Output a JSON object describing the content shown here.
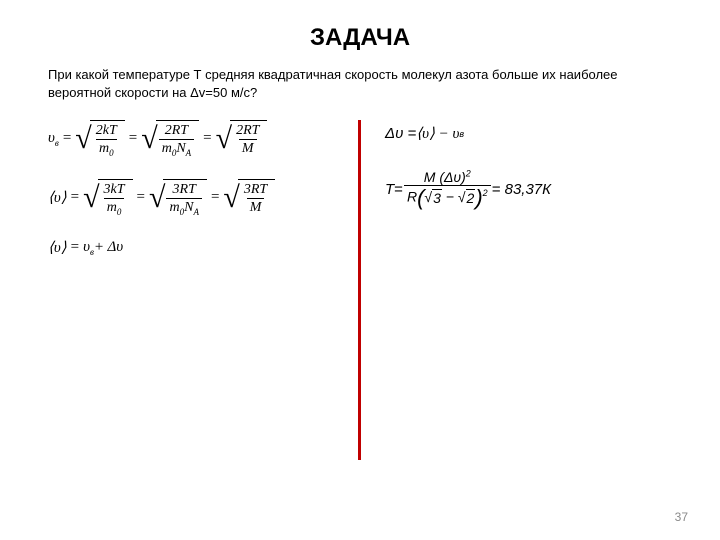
{
  "title": "ЗАДАЧА",
  "problem_text": "При какой температуре Т средняя квадратичная скорость молекул азота больше их наиболее вероятной скорости на Δv=50 м/с?",
  "colors": {
    "divider": "#c00000",
    "text": "#000000",
    "background": "#ffffff",
    "page_num": "#8a8a8a"
  },
  "equations": {
    "eq1_lhs_var": "υ",
    "eq1_lhs_sub": "в",
    "eq1_sqrt1_num": "2kT",
    "eq1_sqrt1_den_var": "m",
    "eq1_sqrt1_den_sub": "0",
    "eq1_sqrt2_num": "2RT",
    "eq1_sqrt2_den_m": "m",
    "eq1_sqrt2_den_sub": "0",
    "eq1_sqrt2_den_N": "N",
    "eq1_sqrt2_den_Nsub": "A",
    "eq1_sqrt3_num": "2RT",
    "eq1_sqrt3_den": "M",
    "eq2_lhs": "⟨υ⟩",
    "eq2_sqrt1_num": "3kT",
    "eq2_sqrt1_den_var": "m",
    "eq2_sqrt1_den_sub": "0",
    "eq2_sqrt2_num": "3RT",
    "eq2_sqrt2_den_m": "m",
    "eq2_sqrt2_den_sub": "0",
    "eq2_sqrt2_den_N": "N",
    "eq2_sqrt2_den_Nsub": "A",
    "eq2_sqrt3_num": "3RT",
    "eq2_sqrt3_den": "M",
    "eq3_lhs": "⟨υ⟩",
    "eq3_rhs_v": "υ",
    "eq3_rhs_sub": "в",
    "eq3_rhs_plus": " + Δυ",
    "req1_lhs": "Δυ = ",
    "req1_rhs": "⟨υ⟩ − υ",
    "req1_sub": "в",
    "req2_T": "T",
    "req2_eq": " = ",
    "req2_num_M": "M",
    "req2_num_dv": "(Δυ)",
    "req2_num_exp": "2",
    "req2_den_R": "R",
    "req2_den_s3": "3",
    "req2_den_s2": "2",
    "req2_den_exp": "2",
    "req2_result": " = 83,37К"
  },
  "page_number": "37",
  "fonts": {
    "title_size": 24,
    "body_size": 13,
    "eq_size": 15
  }
}
